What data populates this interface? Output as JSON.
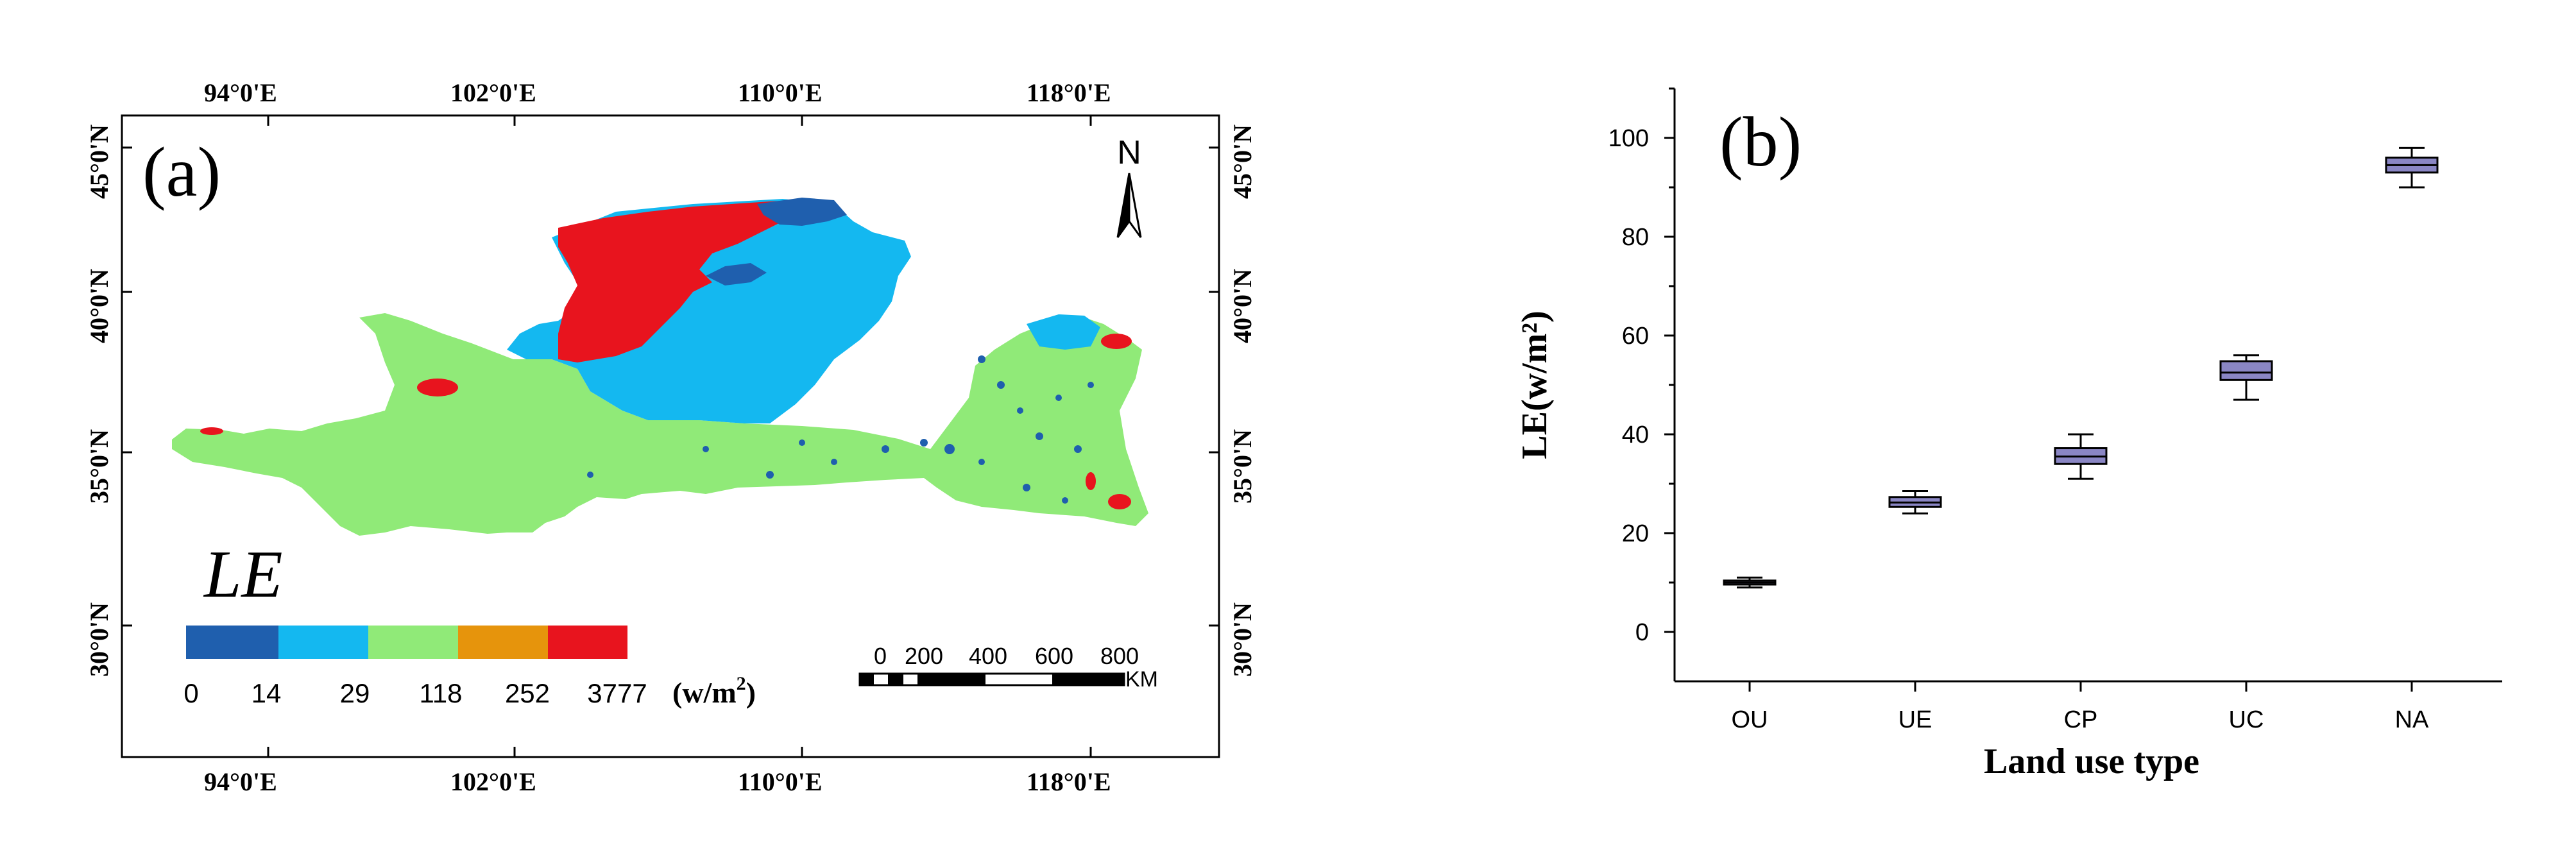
{
  "chart_data": [
    {
      "type": "map",
      "panel_label": "(a)",
      "variable_label": "LE",
      "north_label": "N",
      "lon_ticks_top": [
        "94°0'E",
        "102°0'E",
        "110°0'E",
        "118°0'E"
      ],
      "lon_ticks_bottom": [
        "94°0'E",
        "102°0'E",
        "110°0'E",
        "118°0'E"
      ],
      "lat_ticks_left": [
        "45°0'N",
        "40°0'N",
        "35°0'N",
        "30°0'N"
      ],
      "lat_ticks_right": [
        "45°0'N",
        "40°0'N",
        "35°0'N",
        "30°0'N"
      ],
      "legend": {
        "breaks": [
          "0",
          "14",
          "29",
          "118",
          "252",
          "3777"
        ],
        "colors": [
          "#1f5fae",
          "#14b8f0",
          "#90ea78",
          "#e6940c",
          "#e8141e"
        ],
        "unit": "(w/m",
        "unit_sup": "2",
        "unit_close": ")"
      },
      "scale_bar": {
        "ticks": [
          "0",
          "200",
          "400",
          "600",
          "800"
        ],
        "unit": "KM"
      }
    },
    {
      "type": "box",
      "panel_label": "(b)",
      "xlabel": "Land use type",
      "ylabel": "LE(w/m²)",
      "ylim": [
        -10,
        110
      ],
      "yticks": [
        "0",
        "20",
        "40",
        "60",
        "80",
        "100"
      ],
      "categories": [
        "OU",
        "UE",
        "CP",
        "UC",
        "NA"
      ],
      "boxes": [
        {
          "name": "OU",
          "min": 9,
          "q1": 9.6,
          "median": 10,
          "q3": 10.4,
          "max": 11
        },
        {
          "name": "UE",
          "min": 24,
          "q1": 25.3,
          "median": 26.2,
          "q3": 27.3,
          "max": 28.5
        },
        {
          "name": "CP",
          "min": 31,
          "q1": 34,
          "median": 35.5,
          "q3": 37.2,
          "max": 40
        },
        {
          "name": "UC",
          "min": 47,
          "q1": 51,
          "median": 52.5,
          "q3": 54.8,
          "max": 56
        },
        {
          "name": "NA",
          "min": 90,
          "q1": 93,
          "median": 94.5,
          "q3": 96,
          "max": 98
        }
      ],
      "box_color": "#8a86c4"
    }
  ]
}
